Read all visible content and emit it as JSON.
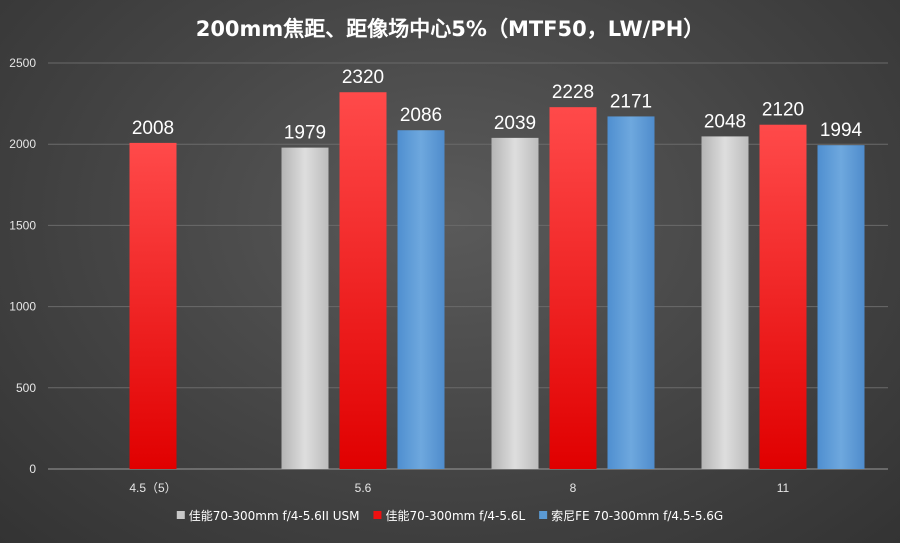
{
  "chart_data": {
    "type": "bar",
    "title": "200mm焦距、距像场中心5%（MTF50，LW/PH）",
    "xlabel": "",
    "ylabel": "",
    "ylim": [
      0,
      2500
    ],
    "yticks": [
      0,
      500,
      1000,
      1500,
      2000,
      2500
    ],
    "grid": true,
    "legend_position": "bottom",
    "categories": [
      "4.5（5）",
      "5.6",
      "8",
      "11"
    ],
    "series": [
      {
        "name": "佳能70-300mm f/4-5.6II USM",
        "color": "#c8c8c8",
        "values": [
          null,
          1979,
          2039,
          2048
        ]
      },
      {
        "name": "佳能70-300mm f/4-5.6L",
        "color": "#ee1111",
        "values": [
          2008,
          2320,
          2228,
          2120
        ]
      },
      {
        "name": "索尼FE 70-300mm f/4.5-5.6G",
        "color": "#5b9bd5",
        "values": [
          null,
          2086,
          2171,
          1994
        ]
      }
    ]
  }
}
